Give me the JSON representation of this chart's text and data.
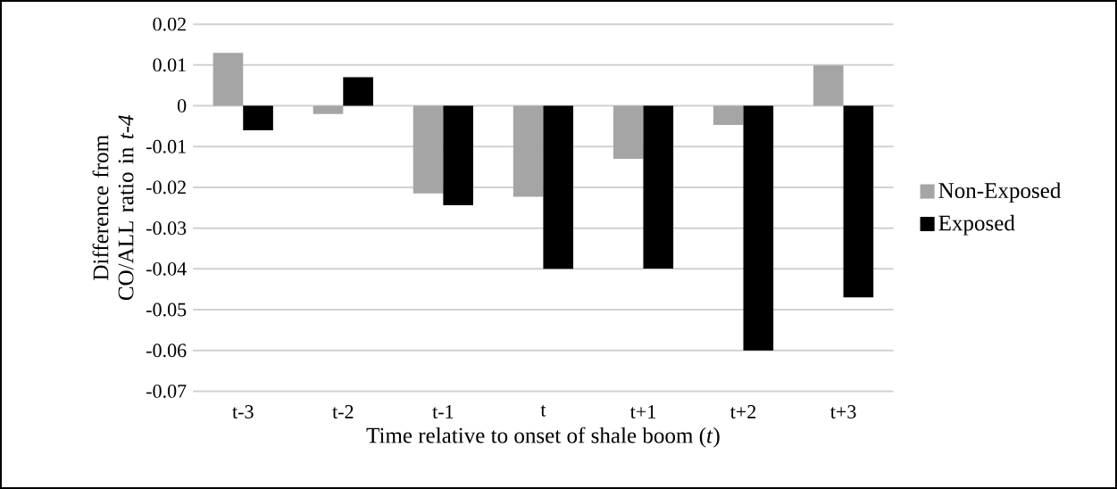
{
  "chart_data": {
    "type": "bar",
    "xlabel": "Time relative to onset of shale boom (*t*)",
    "ylabel": "Difference from CO/ALL ratio in *t-4*",
    "categories": [
      "t-3",
      "t-2",
      "t-1",
      "t",
      "t+1",
      "t+2",
      "t+3"
    ],
    "series": [
      {
        "name": "Non-Exposed",
        "color": "#a5a5a5",
        "values": [
          0.013,
          -0.002,
          -0.0215,
          -0.0223,
          -0.013,
          -0.0047,
          0.0099
        ]
      },
      {
        "name": "Exposed",
        "color": "#000000",
        "values": [
          -0.006,
          0.007,
          -0.0244,
          -0.04,
          -0.0399,
          -0.06,
          -0.047
        ]
      }
    ],
    "ylim": [
      -0.07,
      0.02
    ],
    "yticks": [
      0.02,
      0.01,
      0,
      -0.01,
      -0.02,
      -0.03,
      -0.04,
      -0.05,
      -0.06,
      -0.07
    ],
    "grid": "y",
    "legend": "right"
  }
}
